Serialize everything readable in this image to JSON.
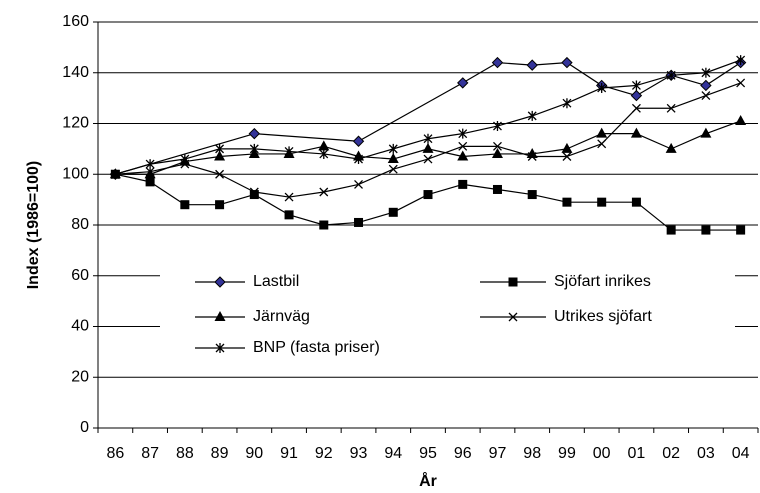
{
  "chart_data": {
    "type": "line",
    "xlabel": "År",
    "ylabel": "Index (1986=100)",
    "categories": [
      "86",
      "87",
      "88",
      "89",
      "90",
      "91",
      "92",
      "93",
      "94",
      "95",
      "96",
      "97",
      "98",
      "99",
      "00",
      "01",
      "02",
      "03",
      "04"
    ],
    "ylim": [
      0,
      160
    ],
    "yticks": [
      0,
      20,
      40,
      60,
      80,
      100,
      120,
      140,
      160
    ],
    "grid": true,
    "connect_gaps": true,
    "series": [
      {
        "name": "Lastbil",
        "color": "#333399",
        "marker": "diamond",
        "values": [
          100,
          null,
          null,
          null,
          116,
          null,
          null,
          113,
          null,
          null,
          136,
          144,
          143,
          144,
          135,
          131,
          139,
          135,
          144
        ]
      },
      {
        "name": "Sjöfart inrikes",
        "color": "#000000",
        "marker": "square",
        "values": [
          100,
          97,
          88,
          88,
          92,
          84,
          80,
          81,
          85,
          92,
          96,
          94,
          92,
          89,
          89,
          89,
          78,
          78,
          78
        ]
      },
      {
        "name": "Järnväg",
        "color": "#000000",
        "marker": "triangle",
        "values": [
          100,
          100,
          105,
          107,
          108,
          108,
          111,
          107,
          106,
          110,
          107,
          108,
          108,
          110,
          116,
          116,
          110,
          116,
          121
        ]
      },
      {
        "name": "Utrikes sjöfart",
        "color": "#000000",
        "marker": "x",
        "values": [
          100,
          101,
          104,
          100,
          93,
          91,
          93,
          96,
          102,
          106,
          111,
          111,
          107,
          107,
          112,
          126,
          126,
          131,
          136
        ]
      },
      {
        "name": "BNP (fasta priser)",
        "color": "#000000",
        "marker": "star",
        "values": [
          100,
          104,
          106,
          110,
          110,
          109,
          108,
          106,
          110,
          114,
          116,
          119,
          123,
          128,
          134,
          135,
          139,
          140,
          145
        ]
      }
    ]
  }
}
